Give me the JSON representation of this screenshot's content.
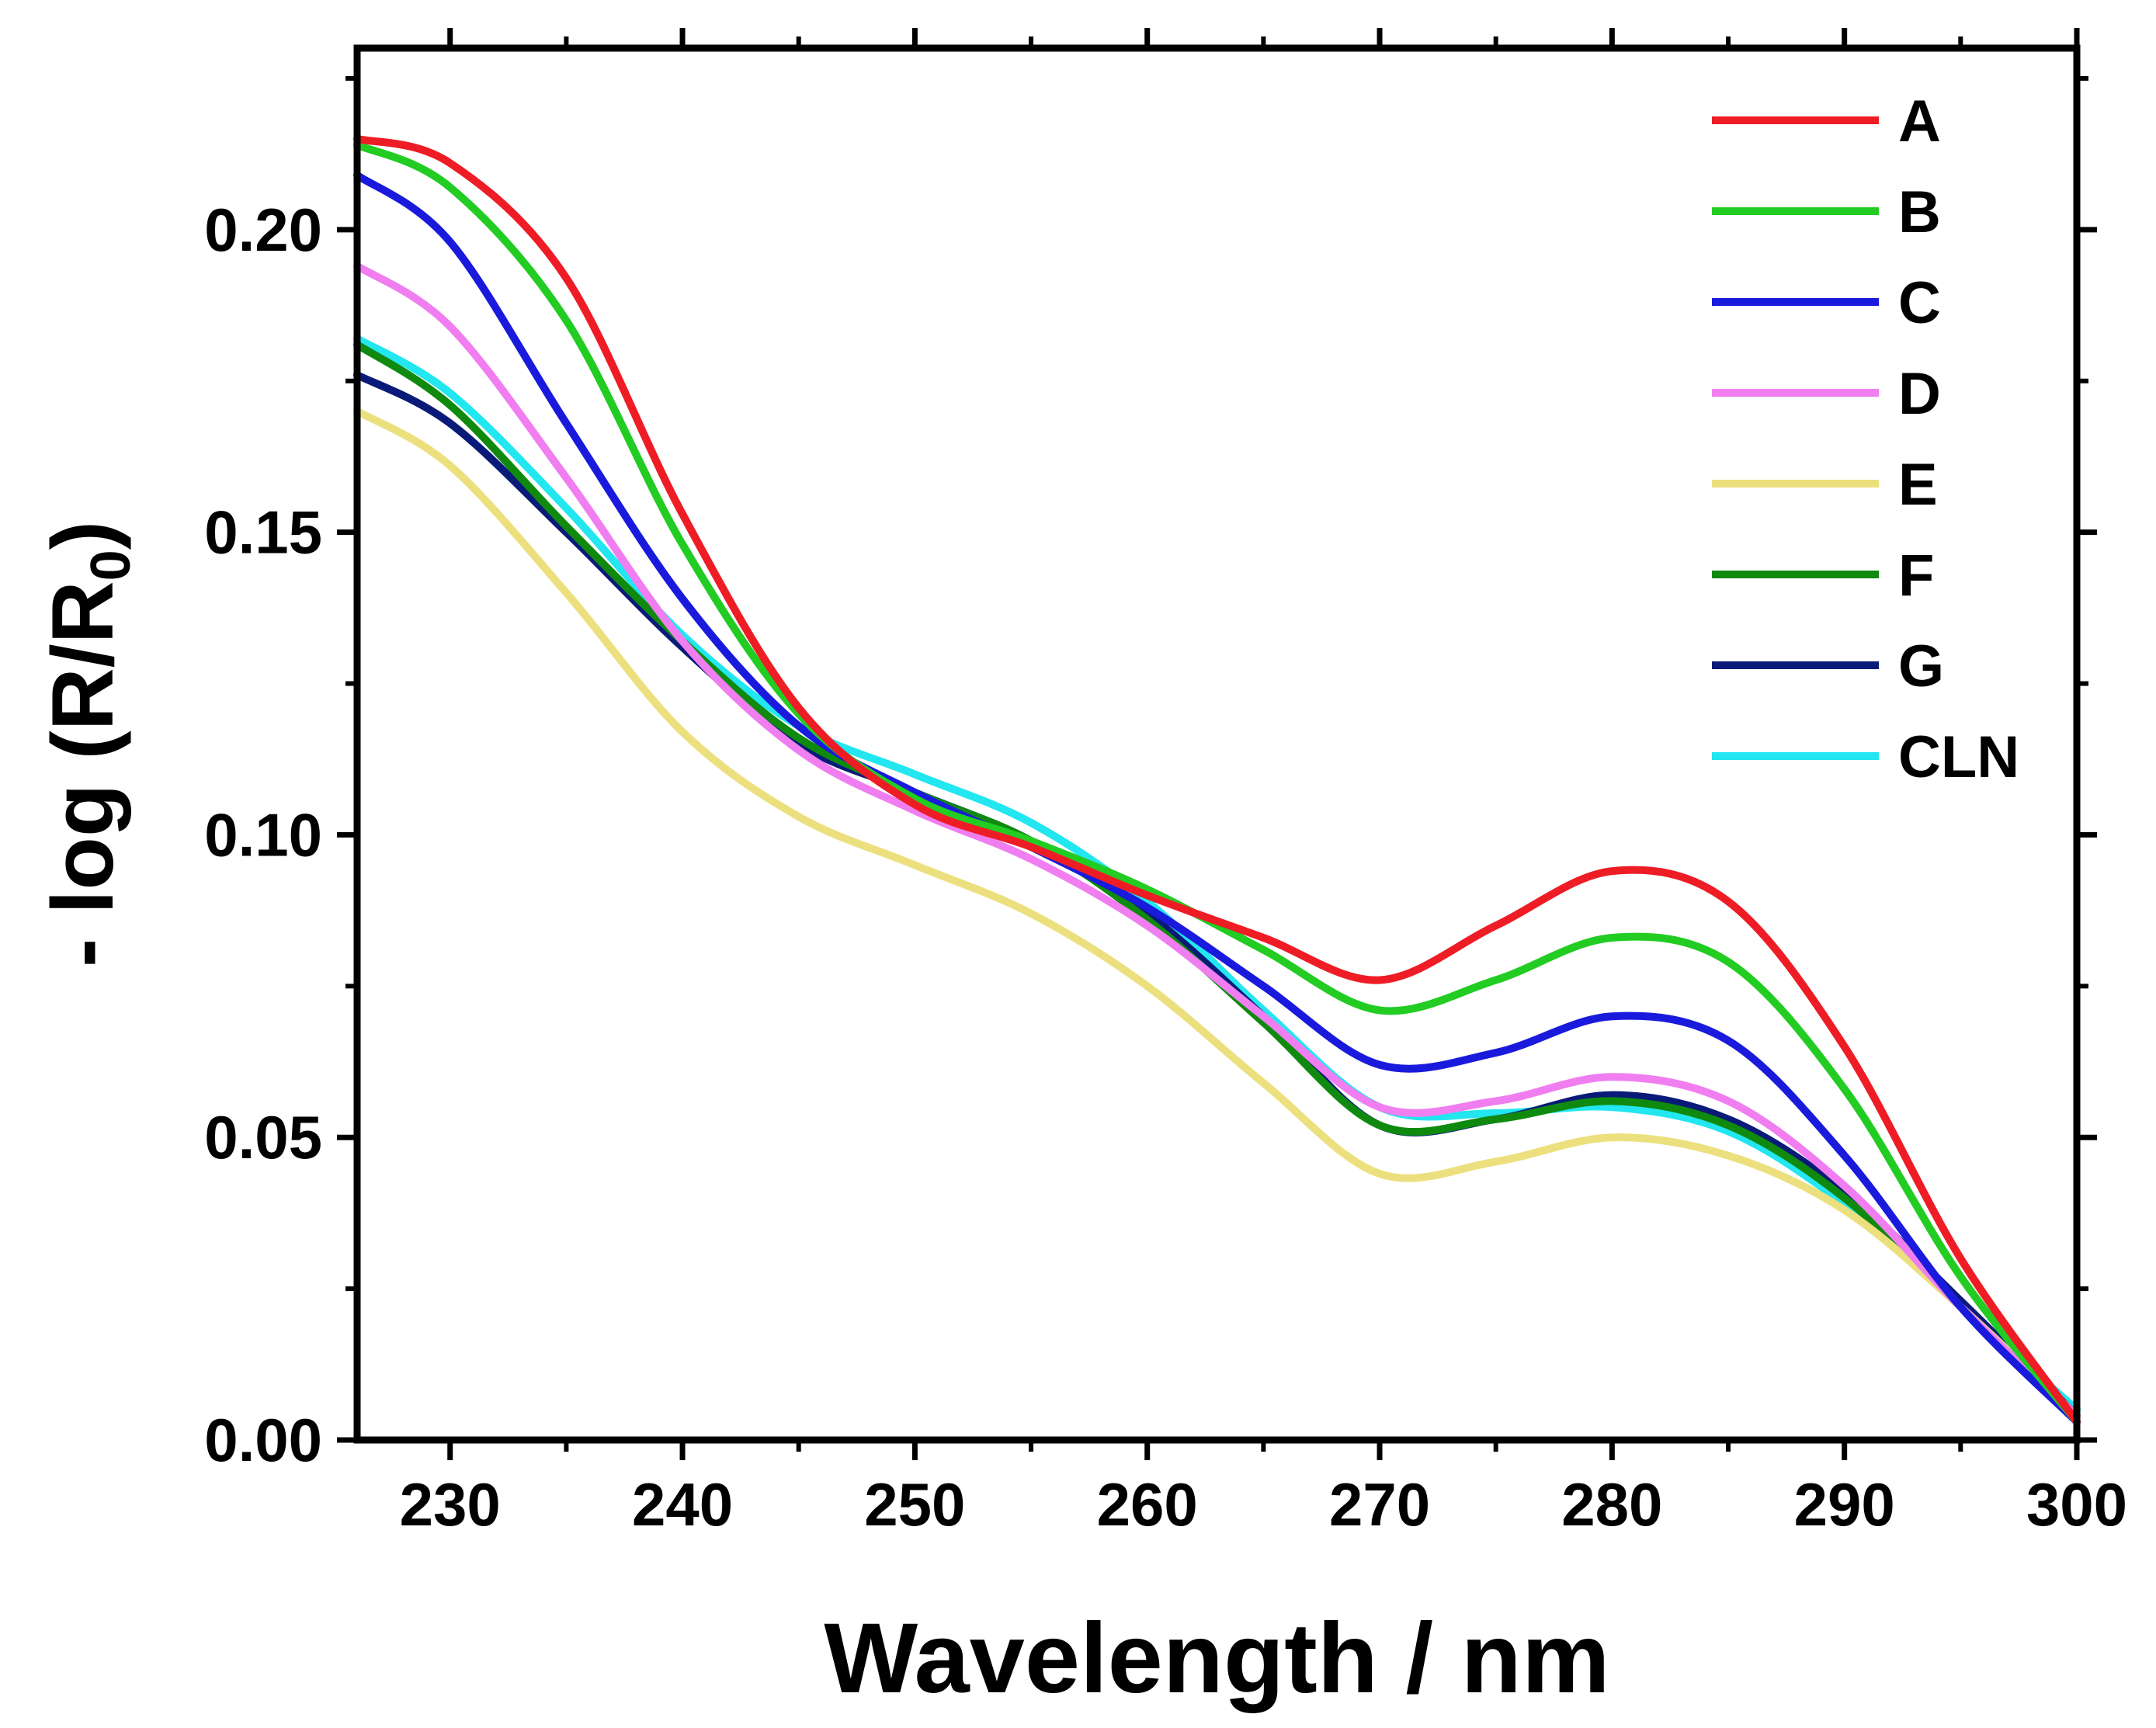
{
  "chart_data": {
    "type": "line",
    "title": "",
    "xlabel": "Wavelength / nm",
    "ylabel_main": "- log (R/R",
    "ylabel_sub": "0",
    "ylabel_close": ")",
    "xlim": [
      226,
      300
    ],
    "ylim": [
      0,
      0.23
    ],
    "x_ticks": [
      230,
      240,
      250,
      260,
      270,
      280,
      290,
      300
    ],
    "x_tick_labels": [
      "230",
      "240",
      "250",
      "260",
      "270",
      "280",
      "290",
      "300"
    ],
    "y_ticks": [
      0,
      0.05,
      0.1,
      0.15,
      0.2
    ],
    "y_tick_labels": [
      "0.00",
      "0.05",
      "0.10",
      "0.15",
      "0.20"
    ],
    "grid": false,
    "legend_position": "top-right",
    "x": [
      226,
      230,
      235,
      240,
      245,
      250,
      255,
      260,
      265,
      270,
      275,
      280,
      285,
      290,
      295,
      300
    ],
    "series": [
      {
        "name": "A",
        "color": "#ee1c25",
        "values": [
          0.215,
          0.211,
          0.192,
          0.153,
          0.121,
          0.105,
          0.098,
          0.09,
          0.083,
          0.076,
          0.085,
          0.094,
          0.089,
          0.065,
          0.03,
          0.003
        ]
      },
      {
        "name": "B",
        "color": "#22cc22",
        "values": [
          0.214,
          0.207,
          0.185,
          0.148,
          0.12,
          0.106,
          0.099,
          0.091,
          0.081,
          0.071,
          0.076,
          0.083,
          0.079,
          0.058,
          0.027,
          0.003
        ]
      },
      {
        "name": "C",
        "color": "#1a1adc",
        "values": [
          0.209,
          0.198,
          0.168,
          0.139,
          0.118,
          0.107,
          0.098,
          0.088,
          0.075,
          0.062,
          0.064,
          0.07,
          0.066,
          0.047,
          0.022,
          0.003
        ]
      },
      {
        "name": "D",
        "color": "#f07ef0",
        "values": [
          0.194,
          0.184,
          0.159,
          0.132,
          0.114,
          0.104,
          0.096,
          0.085,
          0.07,
          0.055,
          0.056,
          0.06,
          0.056,
          0.042,
          0.022,
          0.004
        ]
      },
      {
        "name": "E",
        "color": "#ece07e",
        "values": [
          0.17,
          0.161,
          0.14,
          0.117,
          0.103,
          0.095,
          0.087,
          0.075,
          0.059,
          0.044,
          0.046,
          0.05,
          0.047,
          0.038,
          0.022,
          0.004
        ]
      },
      {
        "name": "F",
        "color": "#0f8a0f",
        "values": [
          0.181,
          0.171,
          0.151,
          0.132,
          0.116,
          0.107,
          0.099,
          0.086,
          0.069,
          0.052,
          0.053,
          0.056,
          0.052,
          0.04,
          0.022,
          0.004
        ]
      },
      {
        "name": "G",
        "color": "#0a1a78",
        "values": [
          0.176,
          0.168,
          0.15,
          0.131,
          0.115,
          0.107,
          0.099,
          0.087,
          0.07,
          0.052,
          0.053,
          0.057,
          0.053,
          0.041,
          0.023,
          0.004
        ]
      },
      {
        "name": "CLN",
        "color": "#22e6f0",
        "values": [
          0.182,
          0.173,
          0.154,
          0.133,
          0.118,
          0.11,
          0.102,
          0.089,
          0.071,
          0.055,
          0.054,
          0.055,
          0.051,
          0.039,
          0.022,
          0.005
        ]
      }
    ]
  }
}
